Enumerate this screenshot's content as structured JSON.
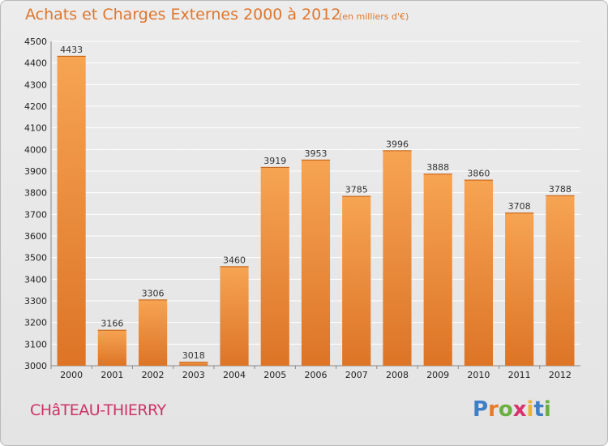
{
  "header": {
    "title": "Achats et Charges Externes 2000 à 2012",
    "unit": "(en milliers d'€)"
  },
  "footer": {
    "city": "CHâTEAU-THIERRY",
    "logo": [
      "P",
      "r",
      "o",
      "x",
      "i",
      "t",
      "i"
    ]
  },
  "colors": {
    "bar_top": "#f6a453",
    "bar_bottom": "#dd7426",
    "title": "#e0762b",
    "city": "#cc3366",
    "grid": "#ffffff",
    "logo": [
      "#3f7fc4",
      "#e77a2a",
      "#6ab03f",
      "#d6336d",
      "#e8b52d",
      "#3f7fc4",
      "#6ab03f"
    ]
  },
  "chart_data": {
    "type": "bar",
    "title": "Achats et Charges Externes 2000 à 2012",
    "subtitle": "(en milliers d'€)",
    "categories": [
      "2000",
      "2001",
      "2002",
      "2003",
      "2004",
      "2005",
      "2006",
      "2007",
      "2008",
      "2009",
      "2010",
      "2011",
      "2012"
    ],
    "values": [
      4433,
      3166,
      3306,
      3018,
      3460,
      3919,
      3953,
      3785,
      3996,
      3888,
      3860,
      3708,
      3788
    ],
    "ylim": [
      3000,
      4500
    ],
    "yticks": [
      3000,
      3100,
      3200,
      3300,
      3400,
      3500,
      3600,
      3700,
      3800,
      3900,
      4000,
      4100,
      4200,
      4300,
      4400,
      4500
    ],
    "grid": true,
    "xlabel": "",
    "ylabel": ""
  }
}
